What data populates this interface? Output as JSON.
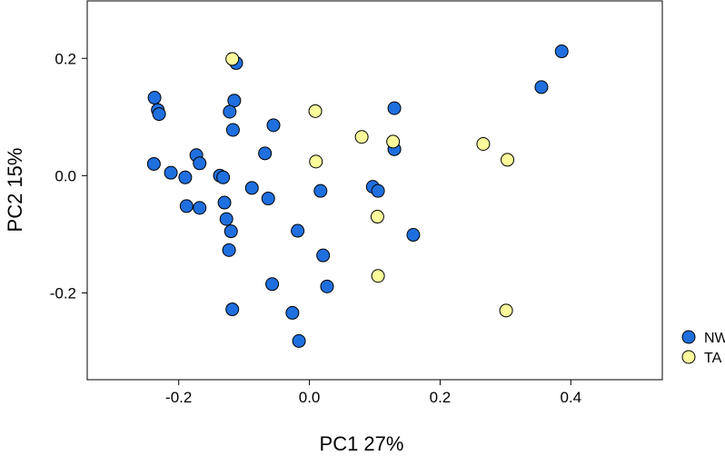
{
  "chart_data": {
    "type": "scatter",
    "title": "",
    "xlabel": "PC1 27%",
    "ylabel": "PC2  15%",
    "xlim": [
      -0.34,
      0.54
    ],
    "ylim": [
      -0.348,
      0.298
    ],
    "xticks": [
      -0.2,
      0.0,
      0.2,
      0.4
    ],
    "xtick_labels": [
      "-0.2",
      "0.0",
      "0.2",
      "0.4"
    ],
    "yticks": [
      -0.2,
      0.0,
      0.2
    ],
    "ytick_labels": [
      "-0.2",
      "0.0",
      "0.2"
    ],
    "grid": false,
    "legend_position": "bottom-right-outside",
    "series": [
      {
        "name": "NW",
        "color": "#1f6fde",
        "points": [
          [
            -0.237,
            0.133
          ],
          [
            -0.232,
            0.112
          ],
          [
            -0.23,
            0.105
          ],
          [
            -0.238,
            0.02
          ],
          [
            -0.212,
            0.005
          ],
          [
            -0.19,
            -0.003
          ],
          [
            -0.173,
            0.035
          ],
          [
            -0.168,
            0.021
          ],
          [
            -0.188,
            -0.052
          ],
          [
            -0.168,
            -0.055
          ],
          [
            -0.137,
            0.0
          ],
          [
            -0.132,
            -0.003
          ],
          [
            -0.13,
            -0.046
          ],
          [
            -0.127,
            -0.074
          ],
          [
            -0.12,
            -0.095
          ],
          [
            -0.123,
            -0.127
          ],
          [
            -0.118,
            -0.228
          ],
          [
            -0.112,
            0.192
          ],
          [
            -0.115,
            0.128
          ],
          [
            -0.122,
            0.109
          ],
          [
            -0.117,
            0.078
          ],
          [
            -0.068,
            0.038
          ],
          [
            -0.063,
            -0.039
          ],
          [
            -0.055,
            0.086
          ],
          [
            -0.088,
            -0.021
          ],
          [
            -0.057,
            -0.185
          ],
          [
            -0.018,
            -0.094
          ],
          [
            -0.026,
            -0.234
          ],
          [
            -0.016,
            -0.282
          ],
          [
            0.017,
            -0.026
          ],
          [
            0.021,
            -0.136
          ],
          [
            0.027,
            -0.189
          ],
          [
            0.097,
            -0.019
          ],
          [
            0.105,
            -0.026
          ],
          [
            0.13,
            0.115
          ],
          [
            0.13,
            0.045
          ],
          [
            0.159,
            -0.101
          ],
          [
            0.355,
            0.151
          ],
          [
            0.386,
            0.212
          ]
        ]
      },
      {
        "name": "TA",
        "color": "#fbfb9c",
        "points": [
          [
            -0.118,
            0.199
          ],
          [
            0.009,
            0.11
          ],
          [
            0.01,
            0.024
          ],
          [
            0.08,
            0.066
          ],
          [
            0.128,
            0.058
          ],
          [
            0.104,
            -0.07
          ],
          [
            0.105,
            -0.171
          ],
          [
            0.266,
            0.054
          ],
          [
            0.303,
            0.027
          ],
          [
            0.301,
            -0.23
          ]
        ]
      }
    ]
  }
}
